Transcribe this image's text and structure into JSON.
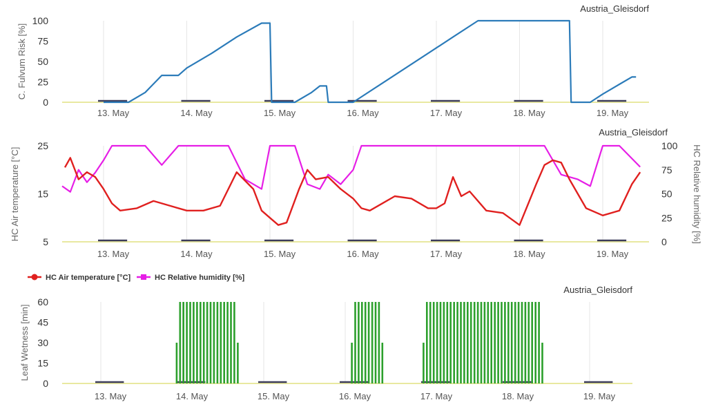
{
  "colors": {
    "risk_line": "#2b7bb9",
    "temperature": "#e0201f",
    "humidity": "#e61ee6",
    "leaf_wetness": "#2ca02c",
    "night_bar": "#3c3c5a",
    "baseline": "#e8e8a0",
    "grid": "#e6e6e6",
    "axis_text": "#555555"
  },
  "day_labels": [
    "13. May",
    "14. May",
    "15. May",
    "16. May",
    "17. May",
    "18. May",
    "19. May"
  ],
  "chart_data": [
    {
      "type": "line",
      "station": "Austria_Gleisdorf",
      "ylabel": "C. Fulvum Risk [%]",
      "ylim": [
        0,
        100
      ],
      "yticks": [
        0,
        25,
        50,
        75,
        100
      ],
      "x_unit": "days since 13. May 00:00",
      "series": [
        {
          "name": "",
          "x": [
            0.0,
            0.3,
            0.5,
            0.7,
            0.9,
            1.0,
            1.3,
            1.6,
            1.9,
            2.0,
            2.02,
            2.3,
            2.5,
            2.6,
            2.68,
            2.7,
            3.0,
            3.3,
            3.6,
            3.9,
            4.2,
            4.5,
            4.9,
            5.2,
            5.6,
            5.62,
            5.8,
            5.85,
            6.0,
            6.2,
            6.35,
            6.4
          ],
          "values": [
            0,
            0,
            12,
            33,
            33,
            42,
            60,
            80,
            97,
            97,
            0,
            0,
            12,
            20,
            20,
            0,
            0,
            20,
            40,
            60,
            80,
            100,
            100,
            100,
            100,
            0,
            0,
            0,
            10,
            22,
            31,
            31
          ]
        }
      ],
      "night_bands": [
        [
          0.0,
          0.3
        ],
        [
          1.0,
          1.3
        ],
        [
          2.0,
          2.3
        ],
        [
          3.0,
          3.3
        ],
        [
          4.0,
          4.3
        ],
        [
          5.0,
          5.3
        ],
        [
          6.0,
          6.3
        ]
      ]
    },
    {
      "type": "line",
      "station": "Austria_Gleisdorf",
      "ylabel_left": "HC Air temperature [°C]",
      "ylabel_right": "HC Relative humidity [%]",
      "ylim_left": [
        5,
        25
      ],
      "yticks_left": [
        5,
        15,
        25
      ],
      "ylim_right": [
        0,
        100
      ],
      "yticks_right": [
        0,
        25,
        50,
        75,
        100
      ],
      "series": [
        {
          "name": "HC Air temperature [°C]",
          "x": [
            -0.5,
            -0.4,
            -0.3,
            -0.2,
            -0.1,
            0.0,
            0.1,
            0.2,
            0.4,
            0.6,
            0.8,
            1.0,
            1.2,
            1.4,
            1.6,
            1.8,
            1.9,
            2.0,
            2.1,
            2.2,
            2.35,
            2.45,
            2.55,
            2.7,
            2.85,
            3.0,
            3.1,
            3.2,
            3.35,
            3.5,
            3.7,
            3.9,
            4.0,
            4.1,
            4.2,
            4.3,
            4.4,
            4.6,
            4.8,
            5.0,
            5.2,
            5.3,
            5.4,
            5.5,
            5.6,
            5.8,
            6.0,
            6.2,
            6.35,
            6.45
          ],
          "values": [
            20.5,
            22.5,
            18,
            19.5,
            18.5,
            16,
            13,
            11.5,
            12,
            13.5,
            12.5,
            11.5,
            11.5,
            12.5,
            19.5,
            16,
            11.5,
            10,
            8.5,
            9,
            16,
            20,
            18,
            18.5,
            16,
            14,
            12,
            11.5,
            13,
            14.5,
            14,
            12,
            12,
            13,
            18.5,
            14.5,
            15.5,
            11.5,
            11,
            8.5,
            17,
            21,
            22,
            21.5,
            18,
            12,
            10.5,
            11.5,
            17,
            19.5
          ]
        },
        {
          "name": "HC Relative humidity [%]",
          "x": [
            -0.5,
            -0.4,
            -0.3,
            -0.2,
            -0.1,
            0.0,
            0.1,
            0.3,
            0.5,
            0.7,
            0.9,
            1.0,
            1.5,
            1.7,
            1.9,
            2.0,
            2.3,
            2.45,
            2.6,
            2.7,
            2.85,
            3.0,
            3.1,
            3.2,
            3.5,
            4.0,
            4.5,
            5.0,
            5.3,
            5.5,
            5.7,
            5.85,
            6.0,
            6.2,
            6.45
          ],
          "values": [
            58,
            52,
            75,
            62,
            72,
            85,
            100,
            100,
            100,
            80,
            100,
            100,
            100,
            65,
            55,
            100,
            100,
            60,
            55,
            70,
            60,
            75,
            100,
            100,
            100,
            100,
            100,
            100,
            100,
            70,
            65,
            58,
            100,
            100,
            78
          ]
        }
      ],
      "legend_position": "bottom-left",
      "night_bands": [
        [
          0.0,
          0.3
        ],
        [
          1.0,
          1.3
        ],
        [
          2.0,
          2.3
        ],
        [
          3.0,
          3.3
        ],
        [
          4.0,
          4.3
        ],
        [
          5.0,
          5.3
        ],
        [
          6.0,
          6.3
        ]
      ]
    },
    {
      "type": "bar",
      "station": "Austria_Gleisdorf",
      "ylabel": "Leaf Wetness [min]",
      "ylim": [
        0,
        60
      ],
      "yticks": [
        0,
        15,
        30,
        45,
        60
      ],
      "runs": [
        {
          "start": 0.92,
          "end": 1.67,
          "edge_values": [
            30,
            60
          ],
          "value": 60
        },
        {
          "start": 3.07,
          "end": 3.45,
          "edge_values": [
            30,
            60
          ],
          "value": 60
        },
        {
          "start": 3.95,
          "end": 5.42,
          "edge_values": [
            30,
            60
          ],
          "value": 60
        }
      ],
      "night_bands": [
        [
          0.0,
          0.3
        ],
        [
          1.0,
          1.3
        ],
        [
          2.0,
          2.3
        ],
        [
          3.0,
          3.3
        ],
        [
          4.0,
          4.3
        ],
        [
          5.0,
          5.3
        ],
        [
          6.0,
          6.3
        ]
      ]
    }
  ]
}
